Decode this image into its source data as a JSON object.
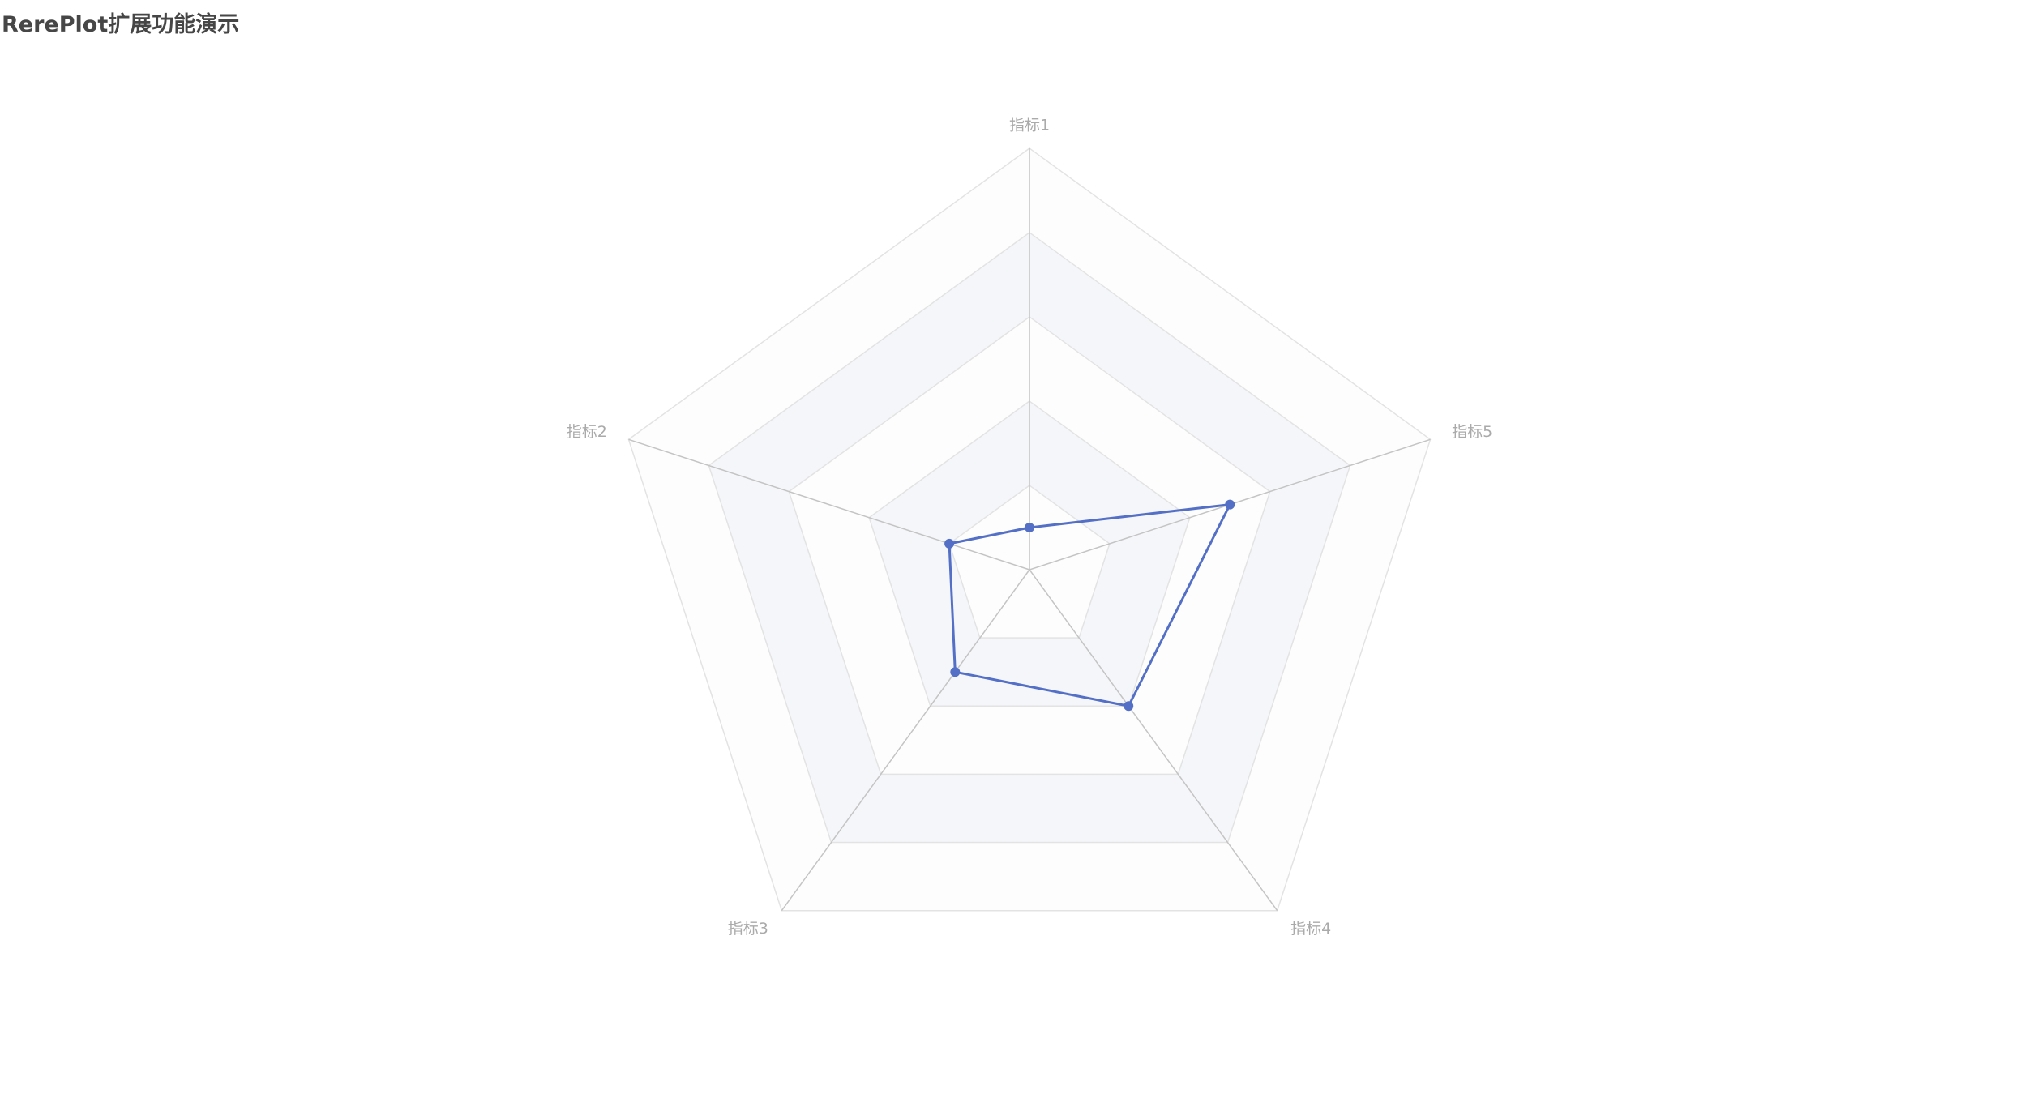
{
  "chart_data": {
    "type": "radar",
    "title": "RerePlot扩展功能演示",
    "indicators": [
      "指标1",
      "指标2",
      "指标3",
      "指标4",
      "指标5"
    ],
    "max": 5,
    "split_number": 5,
    "split_area_colors": [
      "#fdfdfd",
      "#f5f6fa"
    ],
    "grid": true,
    "legend": "none",
    "series": [
      {
        "values": [
          0.5,
          1,
          1.5,
          2,
          2.5
        ],
        "color": "#5470c6"
      }
    ]
  }
}
